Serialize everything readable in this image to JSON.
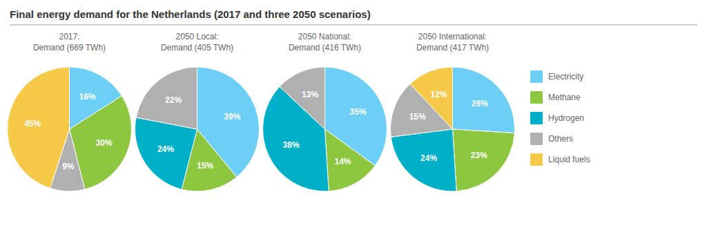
{
  "title": "Final energy demand for the Netherlands (2017 and three 2050 scenarios)",
  "categories": [
    "Electricity",
    "Methane",
    "Hydrogen",
    "Others",
    "Liquid fuels"
  ],
  "colors": [
    "#6dcff6",
    "#8dc63f",
    "#00b0c8",
    "#b0b0b0",
    "#f7c948"
  ],
  "legend": "right",
  "chart_data": [
    {
      "type": "pie",
      "title": "2017:",
      "subtitle": "Demand (669 TWh)",
      "values": [
        16,
        30,
        0,
        9,
        45
      ],
      "value_labels": [
        "16%",
        "30%",
        null,
        "9%",
        "45%"
      ],
      "data_labels": true
    },
    {
      "type": "pie",
      "title": "2050 Local:",
      "subtitle": "Demand (405 TWh)",
      "values": [
        39,
        15,
        24,
        22,
        0
      ],
      "value_labels": [
        "39%",
        "15%",
        "24%",
        "22%",
        null
      ],
      "data_labels": true
    },
    {
      "type": "pie",
      "title": "2050 National:",
      "subtitle": "Demand (416 TWh)",
      "values": [
        35,
        14,
        38,
        13,
        0
      ],
      "value_labels": [
        "35%",
        "14%",
        "38%",
        "13%",
        null
      ],
      "data_labels": true
    },
    {
      "type": "pie",
      "title": "2050 International:",
      "subtitle": "Demand (417 TWh)",
      "values": [
        26,
        23,
        24,
        15,
        12
      ],
      "value_labels": [
        "26%",
        "23%",
        "24%",
        "15%",
        "12%"
      ],
      "data_labels": true
    }
  ]
}
